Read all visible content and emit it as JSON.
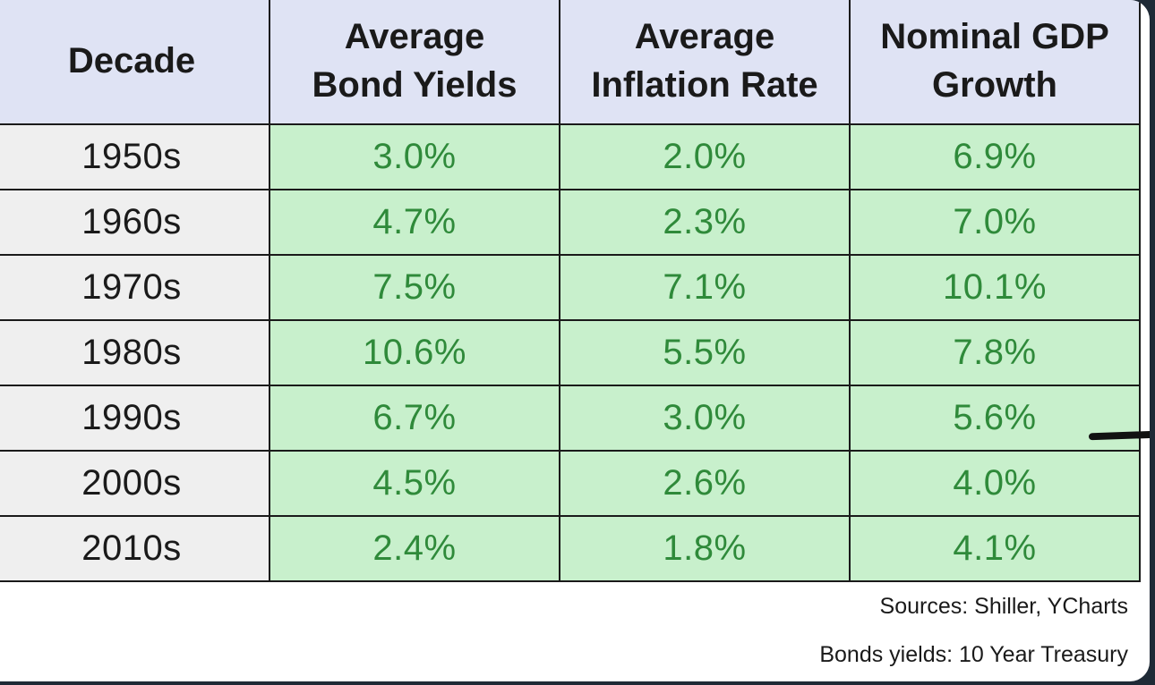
{
  "chart_data": {
    "type": "table",
    "columns": [
      "Decade",
      "Average Bond Yields",
      "Average Inflation Rate",
      "Nominal GDP Growth"
    ],
    "header_lines": [
      [
        "Decade"
      ],
      [
        "Average",
        "Bond Yields"
      ],
      [
        "Average",
        "Inflation Rate"
      ],
      [
        "Nominal GDP",
        "Growth"
      ]
    ],
    "rows": [
      [
        "1950s",
        "3.0%",
        "2.0%",
        "6.9%"
      ],
      [
        "1960s",
        "4.7%",
        "2.3%",
        "7.0%"
      ],
      [
        "1970s",
        "7.5%",
        "7.1%",
        "10.1%"
      ],
      [
        "1980s",
        "10.6%",
        "5.5%",
        "7.8%"
      ],
      [
        "1990s",
        "6.7%",
        "3.0%",
        "5.6%"
      ],
      [
        "2000s",
        "4.5%",
        "2.6%",
        "4.0%"
      ],
      [
        "2010s",
        "2.4%",
        "1.8%",
        "4.1%"
      ]
    ],
    "series": [
      {
        "name": "Average Bond Yields",
        "values": [
          3.0,
          4.7,
          7.5,
          10.6,
          6.7,
          4.5,
          2.4
        ]
      },
      {
        "name": "Average Inflation Rate",
        "values": [
          2.0,
          2.3,
          7.1,
          5.5,
          3.0,
          2.6,
          1.8
        ]
      },
      {
        "name": "Nominal GDP Growth",
        "values": [
          6.9,
          7.0,
          10.1,
          7.8,
          5.6,
          4.0,
          4.1
        ]
      }
    ],
    "categories": [
      "1950s",
      "1960s",
      "1970s",
      "1980s",
      "1990s",
      "2000s",
      "2010s"
    ]
  },
  "footer": {
    "sources": "Sources: Shiller, YCharts",
    "note": "Bonds yields: 10 Year Treasury"
  },
  "colors": {
    "header_bg": "#dfe3f4",
    "value_bg": "#c8f0cc",
    "value_text": "#2f8a3a",
    "decade_bg": "#efefef"
  }
}
